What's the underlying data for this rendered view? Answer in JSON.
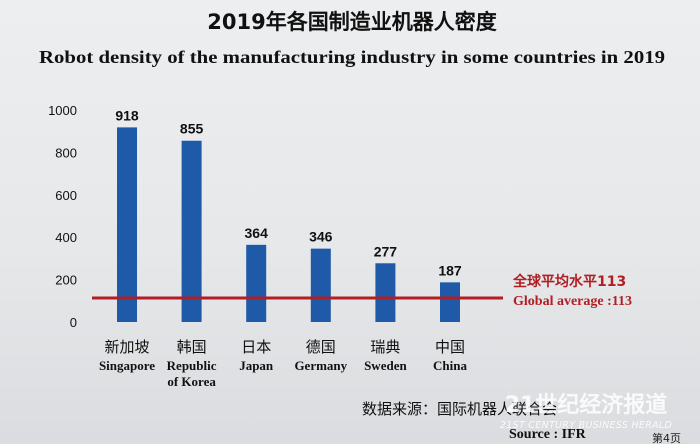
{
  "chart_data": {
    "type": "bar",
    "title": "2019年各国制造业机器人密度",
    "subtitle": "Robot density of the manufacturing industry in some countries in 2019",
    "ylim": [
      0,
      1000
    ],
    "yticks": [
      0,
      200,
      400,
      600,
      800,
      1000
    ],
    "categories": [
      {
        "zh": "新加坡",
        "en": [
          "Singapore"
        ]
      },
      {
        "zh": "韩国",
        "en": [
          "Republic",
          "of Korea"
        ]
      },
      {
        "zh": "日本",
        "en": [
          "Japan"
        ]
      },
      {
        "zh": "德国",
        "en": [
          "Germany"
        ]
      },
      {
        "zh": "瑞典",
        "en": [
          "Sweden"
        ]
      },
      {
        "zh": "中国",
        "en": [
          "China"
        ]
      }
    ],
    "values": [
      918,
      855,
      364,
      346,
      277,
      187
    ],
    "value_labels": [
      "918",
      "855",
      "364",
      "346",
      "277",
      "187"
    ],
    "reference_line": {
      "value": 113,
      "label_zh": "全球平均水平113",
      "label_en": "Global average :113",
      "color": "#b11e24"
    },
    "bar_color": "#1f5aa8",
    "grid": false,
    "source_zh": "数据来源：国际机器人联合会",
    "source_en": "Source : IFR"
  },
  "watermark": {
    "line1": "21世纪经济报道",
    "line2": "21ST CENTURY BUSINESS HERALD"
  },
  "page_marker": "第4页"
}
